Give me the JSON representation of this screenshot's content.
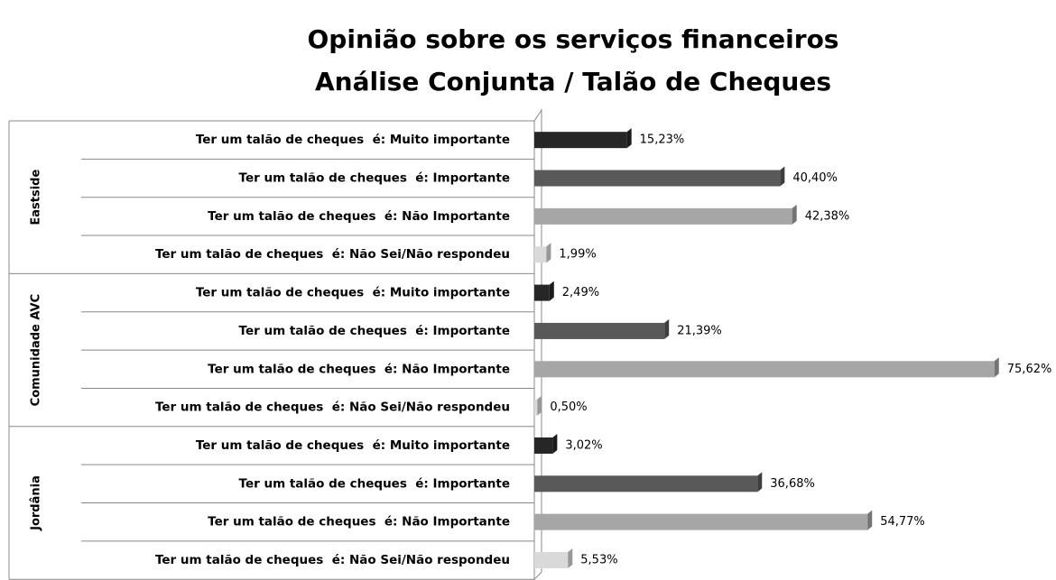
{
  "chart_data": {
    "type": "bar",
    "title": "Opinião sobre os serviços financeiros",
    "subtitle": "Análise Conjunta / Talão de Cheques",
    "colors": [
      "#262626",
      "#595959",
      "#a6a6a6",
      "#d9d9d9"
    ],
    "xlim": [
      0,
      85
    ],
    "groups": [
      {
        "name": "Eastside",
        "categories": [
          "Ter um talão de cheques  é: Muito importante",
          "Ter um talão de cheques  é: Importante",
          "Ter um talão de cheques  é: Não Importante",
          "Ter um talão de cheques  é: Não Sei/Não respondeu"
        ],
        "values": [
          15.23,
          40.4,
          42.38,
          1.99
        ],
        "value_labels": [
          "15,23%",
          "40,40%",
          "42,38%",
          "1,99%"
        ]
      },
      {
        "name": "Comunidade AVC",
        "categories": [
          "Ter um talão de cheques  é: Muito importante",
          "Ter um talão de cheques  é: Importante",
          "Ter um talão de cheques  é: Não Importante",
          "Ter um talão de cheques  é: Não Sei/Não respondeu"
        ],
        "values": [
          2.49,
          21.39,
          75.62,
          0.5
        ],
        "value_labels": [
          "2,49%",
          "21,39%",
          "75,62%",
          "0,50%"
        ]
      },
      {
        "name": "Jordânia",
        "categories": [
          "Ter um talão de cheques  é: Muito importante",
          "Ter um talão de cheques  é: Importante",
          "Ter um talão de cheques  é: Não Importante",
          "Ter um talão de cheques  é: Não Sei/Não respondeu"
        ],
        "values": [
          3.02,
          36.68,
          54.77,
          5.53
        ],
        "value_labels": [
          "3,02%",
          "36,68%",
          "54,77%",
          "5,53%"
        ]
      }
    ]
  }
}
